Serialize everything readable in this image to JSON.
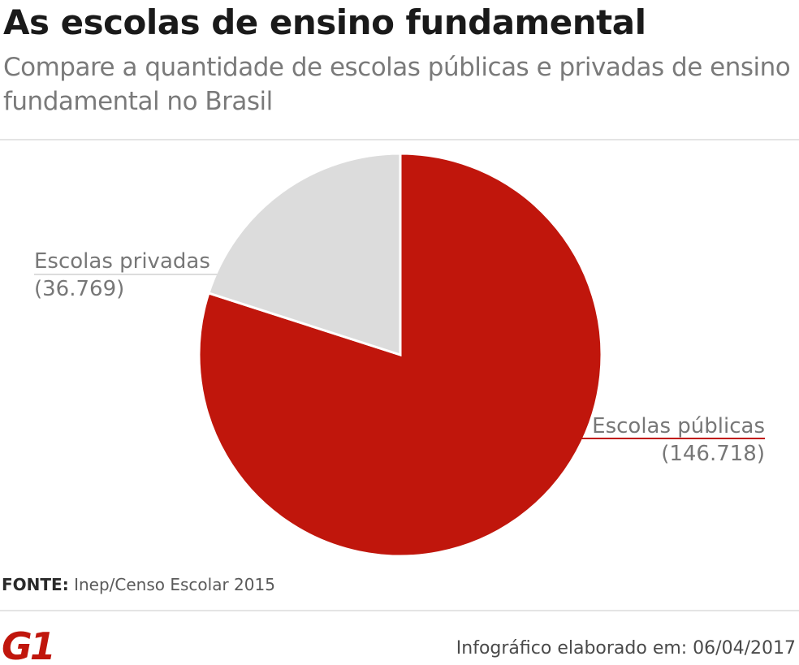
{
  "header": {
    "title": "As escolas de ensino fundamental",
    "subtitle": "Compare a quantidade de escolas públicas e privadas de ensino fundamental no Brasil"
  },
  "chart_data": {
    "type": "pie",
    "title": "As escolas de ensino fundamental",
    "subtitle": "Compare a quantidade de escolas públicas e privadas de ensino fundamental no Brasil",
    "slices": [
      {
        "label": "Escolas públicas",
        "value": 146718,
        "value_label": "(146.718)",
        "color": "#c0160c"
      },
      {
        "label": "Escolas privadas",
        "value": 36769,
        "value_label": "(36.769)",
        "color": "#dcdcdc"
      }
    ],
    "label_color": "#777777"
  },
  "footer": {
    "source_label": "FONTE:",
    "source_text": "Inep/Censo Escolar 2015",
    "logo_text": "G1",
    "logo_color": "#c0160c",
    "credit": "Infográfico elaborado em: 06/04/2017"
  }
}
